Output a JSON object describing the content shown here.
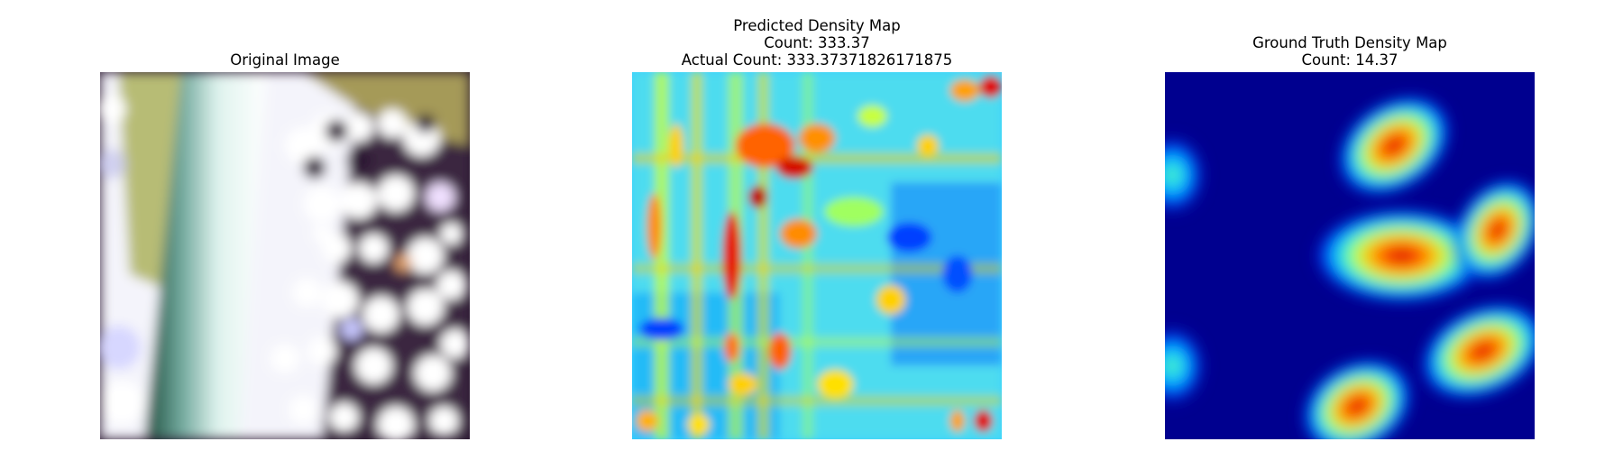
{
  "panels": [
    {
      "lines": [
        "Original Image"
      ]
    },
    {
      "lines": [
        "Predicted Density Map",
        "Count: 333.37",
        "Actual Count: 333.37371826171875"
      ]
    },
    {
      "lines": [
        "Ground Truth Density Map",
        "Count: 14.37"
      ]
    }
  ],
  "colors": {
    "jet_low": "#00008f",
    "jet_mid": "#7fff7f",
    "jet_high": "#8f0000"
  }
}
